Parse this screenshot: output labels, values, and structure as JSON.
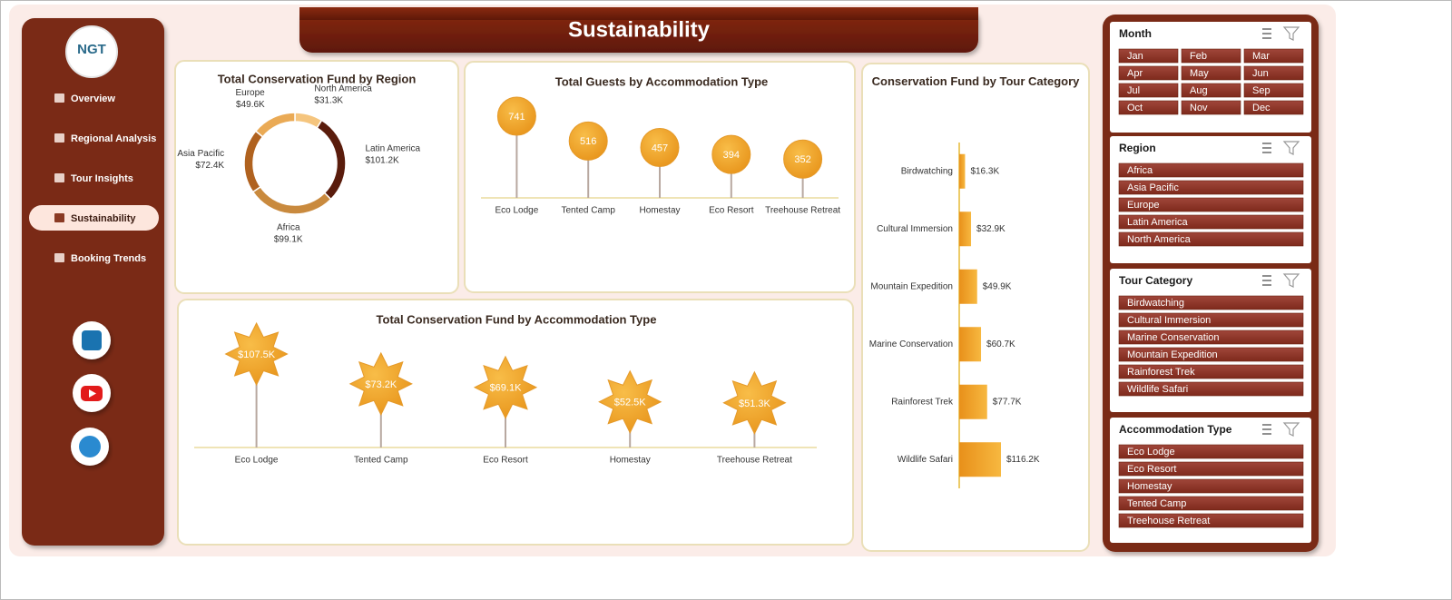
{
  "header": {
    "title": "Sustainability"
  },
  "nav": {
    "logo": "NGT",
    "items": [
      "Overview",
      "Regional Analysis",
      "Tour Insights",
      "Sustainability",
      "Booking Trends"
    ],
    "active": 3
  },
  "chart_data": [
    {
      "type": "donut",
      "title": "Total Conservation Fund by Region",
      "categories": [
        "North America",
        "Latin America",
        "Africa",
        "Asia Pacific",
        "Europe"
      ],
      "values": [
        31300,
        101200,
        99100,
        72400,
        49600
      ],
      "value_labels": [
        "$31.3K",
        "$101.2K",
        "$99.1K",
        "$72.4K",
        "$49.6K"
      ],
      "colors": [
        "#f5c57e",
        "#5a1c0c",
        "#c98a3e",
        "#b0621f",
        "#eaaa55"
      ]
    },
    {
      "type": "lollipop",
      "marker": "circle",
      "title": "Total Guests by Accommodation Type",
      "categories": [
        "Eco Lodge",
        "Tented Camp",
        "Homestay",
        "Eco Resort",
        "Treehouse Retreat"
      ],
      "values": [
        741,
        516,
        457,
        394,
        352
      ],
      "color": "#f2a62a"
    },
    {
      "type": "lollipop",
      "marker": "star",
      "title": "Total Conservation Fund by Accommodation Type",
      "categories": [
        "Eco Lodge",
        "Tented Camp",
        "Eco Resort",
        "Homestay",
        "Treehouse Retreat"
      ],
      "values": [
        107500,
        73200,
        69100,
        52500,
        51300
      ],
      "value_labels": [
        "$107.5K",
        "$73.2K",
        "$69.1K",
        "$52.5K",
        "$51.3K"
      ],
      "color": "#f2a62a"
    },
    {
      "type": "bar",
      "orientation": "horizontal",
      "title": "Conservation Fund by Tour Category",
      "categories": [
        "Birdwatching",
        "Cultural Immersion",
        "Mountain Expedition",
        "Marine Conservation",
        "Rainforest Trek",
        "Wildlife Safari"
      ],
      "values": [
        16300,
        32900,
        49900,
        60700,
        77700,
        116200
      ],
      "value_labels": [
        "$16.3K",
        "$32.9K",
        "$49.9K",
        "$60.7K",
        "$77.7K",
        "$116.2K"
      ],
      "color": "#f2a62a"
    }
  ],
  "slicers": [
    {
      "title": "Month",
      "columns": 3,
      "items": [
        "Jan",
        "Feb",
        "Mar",
        "Apr",
        "May",
        "Jun",
        "Jul",
        "Aug",
        "Sep",
        "Oct",
        "Nov",
        "Dec"
      ]
    },
    {
      "title": "Region",
      "columns": 1,
      "items": [
        "Africa",
        "Asia Pacific",
        "Europe",
        "Latin America",
        "North America"
      ]
    },
    {
      "title": "Tour Category",
      "columns": 1,
      "items": [
        "Birdwatching",
        "Cultural Immersion",
        "Marine Conservation",
        "Mountain Expedition",
        "Rainforest Trek",
        "Wildlife Safari"
      ]
    },
    {
      "title": "Accommodation Type",
      "columns": 1,
      "items": [
        "Eco Lodge",
        "Eco Resort",
        "Homestay",
        "Tented Camp",
        "Treehouse Retreat"
      ]
    }
  ]
}
